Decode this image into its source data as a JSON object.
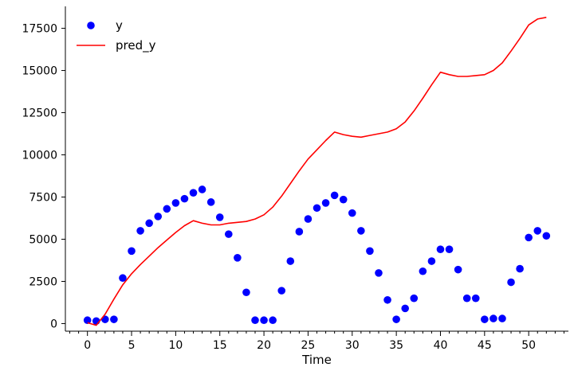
{
  "chart_data": {
    "type": "scatter+line",
    "title": "",
    "xlabel": "Time",
    "ylabel": "",
    "xlim": [
      -2.5,
      54.5
    ],
    "ylim": [
      -450,
      18800
    ],
    "xticks": [
      0,
      5,
      10,
      15,
      20,
      25,
      30,
      35,
      40,
      45,
      50
    ],
    "xtick_labels": [
      "0",
      "5",
      "10",
      "15",
      "20",
      "25",
      "30",
      "35",
      "40",
      "45",
      "50"
    ],
    "xminor_step": 1,
    "yticks": [
      0,
      2500,
      5000,
      7500,
      10000,
      12500,
      15000,
      17500
    ],
    "ytick_labels": [
      "0",
      "2500",
      "5000",
      "7500",
      "10000",
      "12500",
      "15000",
      "17500"
    ],
    "legend": {
      "position": "top-left",
      "entries": [
        {
          "label": "y",
          "marker": "circle",
          "color": "#0000ff"
        },
        {
          "label": "pred_y",
          "marker": "line",
          "color": "#ff0000"
        }
      ]
    },
    "colors": {
      "y": "#0000ff",
      "pred_y": "#ff0000"
    },
    "series": [
      {
        "name": "y",
        "kind": "scatter",
        "x": [
          0,
          1,
          2,
          3,
          4,
          5,
          6,
          7,
          8,
          9,
          10,
          11,
          12,
          13,
          14,
          15,
          16,
          17,
          18,
          19,
          20,
          21,
          22,
          23,
          24,
          25,
          26,
          27,
          28,
          29,
          30,
          31,
          32,
          33,
          34,
          35,
          36,
          37,
          38,
          39,
          40,
          41,
          42,
          43,
          44,
          45,
          46,
          47,
          48,
          49,
          50,
          51,
          52
        ],
        "y": [
          200,
          150,
          250,
          250,
          2700,
          4300,
          5500,
          5950,
          6350,
          6800,
          7150,
          7400,
          7750,
          7950,
          7200,
          6300,
          5300,
          3900,
          1850,
          200,
          200,
          200,
          1950,
          3700,
          5450,
          6200,
          6850,
          7150,
          7600,
          7350,
          6550,
          5500,
          4300,
          3000,
          1400,
          250,
          900,
          1500,
          3100,
          3700,
          4400,
          4400,
          3200,
          1500,
          1500,
          250,
          300,
          300,
          2450,
          3250,
          5100,
          5500,
          5200
        ]
      },
      {
        "name": "pred_y",
        "kind": "line",
        "x": [
          0,
          1,
          2,
          3,
          4,
          5,
          6,
          7,
          8,
          9,
          10,
          11,
          12,
          13,
          14,
          15,
          16,
          17,
          18,
          19,
          20,
          21,
          22,
          23,
          24,
          25,
          26,
          27,
          28,
          29,
          30,
          31,
          32,
          33,
          34,
          35,
          36,
          37,
          38,
          39,
          40,
          41,
          42,
          43,
          44,
          45,
          46,
          47,
          48,
          49,
          50,
          51,
          52
        ],
        "y": [
          50,
          -100,
          550,
          1450,
          2300,
          2950,
          3500,
          4000,
          4500,
          4950,
          5400,
          5800,
          6100,
          5950,
          5850,
          5850,
          5950,
          6000,
          6050,
          6200,
          6450,
          6900,
          7550,
          8300,
          9050,
          9750,
          10300,
          10850,
          11350,
          11200,
          11100,
          11050,
          11150,
          11250,
          11350,
          11550,
          11950,
          12600,
          13350,
          14150,
          14900,
          14750,
          14650,
          14650,
          14700,
          14750,
          15000,
          15450,
          16150,
          16900,
          17700,
          18050,
          18150
        ]
      }
    ]
  }
}
